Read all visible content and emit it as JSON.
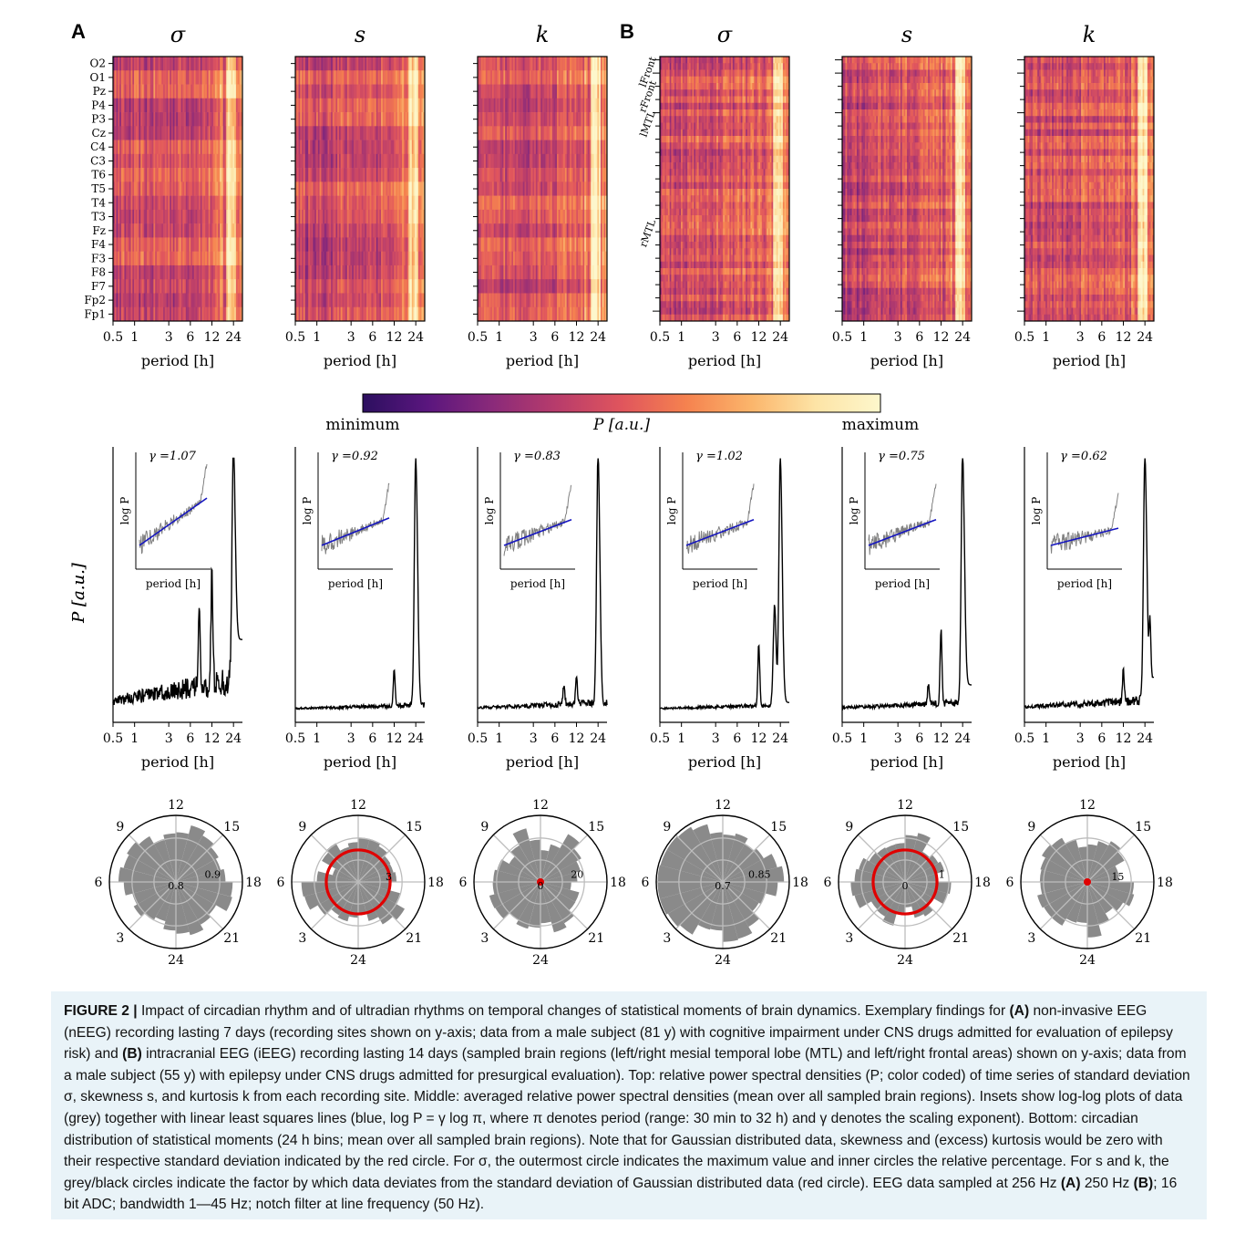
{
  "panels": {
    "A": "A",
    "B": "B"
  },
  "moments": [
    "σ",
    "s",
    "k"
  ],
  "x_axis": {
    "label": "period [h]",
    "ticks": [
      0.5,
      1,
      3,
      6,
      12,
      24
    ],
    "tick_labels": [
      "0.5",
      "1",
      "3",
      "6",
      "12",
      "24"
    ],
    "range": [
      0.5,
      32
    ],
    "scale": "log"
  },
  "heatmap_rows_A": [
    "O2",
    "O1",
    "Pz",
    "P4",
    "P3",
    "Cz",
    "C4",
    "C3",
    "T6",
    "T5",
    "T4",
    "T3",
    "Fz",
    "F4",
    "F3",
    "F8",
    "F7",
    "Fp2",
    "Fp1"
  ],
  "heatmap_rows_B": [
    "lFront",
    "rFront",
    "lMTL",
    "rMTL"
  ],
  "colorbar": {
    "min_label": "minimum",
    "max_label": "maximum",
    "label": "P [a.u.]",
    "colors": [
      "#2c0f5f",
      "#5a167e",
      "#8a2a7a",
      "#b83c6b",
      "#e0555d",
      "#f5824f",
      "#fbb56b",
      "#fde4a6",
      "#fdf7cc"
    ]
  },
  "inset": {
    "ylabel": "log P",
    "xlabel": "period [h]",
    "fit_color": "#1515c0",
    "data_color": "#808080"
  },
  "spectrum": {
    "ylabel": "P [a.u.]"
  },
  "chart_data": [
    {
      "type": "line",
      "panel": "A",
      "moment": "σ",
      "gamma": "γ =1.07",
      "peaks": [
        {
          "period_h": 24,
          "height": 1.0
        },
        {
          "period_h": 12,
          "height": 0.45
        },
        {
          "period_h": 8,
          "height": 0.3
        }
      ],
      "noise": 0.12,
      "tail": 0.3
    },
    {
      "type": "line",
      "panel": "A",
      "moment": "s",
      "gamma": "γ =0.92",
      "peaks": [
        {
          "period_h": 24,
          "height": 1.0
        },
        {
          "period_h": 12,
          "height": 0.14
        }
      ],
      "noise": 0.02,
      "tail": 0.03
    },
    {
      "type": "line",
      "panel": "A",
      "moment": "k",
      "gamma": "γ =0.83",
      "peaks": [
        {
          "period_h": 24,
          "height": 1.0
        },
        {
          "period_h": 12,
          "height": 0.1
        },
        {
          "period_h": 8,
          "height": 0.07
        }
      ],
      "noise": 0.03,
      "tail": 0.03
    },
    {
      "type": "line",
      "panel": "B",
      "moment": "σ",
      "gamma": "γ =1.02",
      "peaks": [
        {
          "period_h": 24,
          "height": 1.0
        },
        {
          "period_h": 12,
          "height": 0.25
        },
        {
          "period_h": 20,
          "height": 0.4
        }
      ],
      "noise": 0.02,
      "tail": 0.05
    },
    {
      "type": "line",
      "panel": "B",
      "moment": "s",
      "gamma": "γ =0.75",
      "peaks": [
        {
          "period_h": 24,
          "height": 1.0
        },
        {
          "period_h": 12,
          "height": 0.3
        },
        {
          "period_h": 8,
          "height": 0.08
        }
      ],
      "noise": 0.03,
      "tail": 0.12
    },
    {
      "type": "line",
      "panel": "B",
      "moment": "k",
      "gamma": "γ =0.62",
      "peaks": [
        {
          "period_h": 24,
          "height": 1.0
        },
        {
          "period_h": 12,
          "height": 0.12
        },
        {
          "period_h": 28,
          "height": 0.32
        }
      ],
      "noise": 0.04,
      "tail": 0.15
    }
  ],
  "polar": {
    "hour_labels": [
      "12",
      "15",
      "18",
      "21",
      "24",
      "3",
      "6",
      "9"
    ],
    "red_color": "#e00000",
    "plots": [
      {
        "panel": "A",
        "moment": "σ",
        "ring_labels": [
          "0.8",
          "0.9"
        ],
        "red_circle": false
      },
      {
        "panel": "A",
        "moment": "s",
        "ring_labels": [
          "3"
        ],
        "red_circle": true
      },
      {
        "panel": "A",
        "moment": "k",
        "ring_labels": [
          "0",
          "20"
        ],
        "red_circle": false
      },
      {
        "panel": "B",
        "moment": "σ",
        "ring_labels": [
          "0.7",
          "0.85"
        ],
        "red_circle": false
      },
      {
        "panel": "B",
        "moment": "s",
        "ring_labels": [
          "0",
          "1"
        ],
        "red_circle": true
      },
      {
        "panel": "B",
        "moment": "k",
        "ring_labels": [
          "15"
        ],
        "red_circle": false
      }
    ]
  },
  "caption": {
    "label": "FIGURE 2 |",
    "parts": [
      {
        "t": " Impact of circadian rhythm and of ultradian rhythms on temporal changes of statistical moments of brain dynamics. Exemplary findings for "
      },
      {
        "b": "(A)"
      },
      {
        "t": " non-invasive EEG (nEEG) recording lasting 7 days (recording sites shown on y-axis; data from a male subject (81 y) with cognitive impairment under CNS drugs admitted for evaluation of epilepsy risk) and "
      },
      {
        "b": "(B)"
      },
      {
        "t": " intracranial EEG (iEEG) recording lasting 14 days (sampled brain regions (left/right mesial temporal lobe (MTL) and left/right frontal areas) shown on y-axis; data from a male subject (55 y) with epilepsy under CNS drugs admitted for presurgical evaluation). Top: relative power spectral densities (P; color coded) of time series of standard deviation σ, skewness s, and kurtosis k from each recording site. Middle: averaged relative power spectral densities (mean over all sampled brain regions). Insets show log-log plots of data (grey) together with linear least squares lines (blue, log P = γ log π, where π denotes period (range: 30 min to 32 h) and γ denotes the scaling exponent). Bottom: circadian distribution of statistical moments (24 h bins; mean over all sampled brain regions). Note that for Gaussian distributed data, skewness and (excess) kurtosis would be zero with their respective standard deviation indicated by the red circle. For σ, the outermost circle indicates the maximum value and inner circles the relative percentage. For s and k, the grey/black circles indicate the factor by which data deviates from the standard deviation of Gaussian distributed data (red circle). EEG data sampled at 256 Hz "
      },
      {
        "b": "(A)"
      },
      {
        "t": " 250 Hz "
      },
      {
        "b": "(B)"
      },
      {
        "t": "; 16 bit ADC; bandwidth 1—45 Hz; notch filter at line frequency (50 Hz)."
      }
    ]
  }
}
